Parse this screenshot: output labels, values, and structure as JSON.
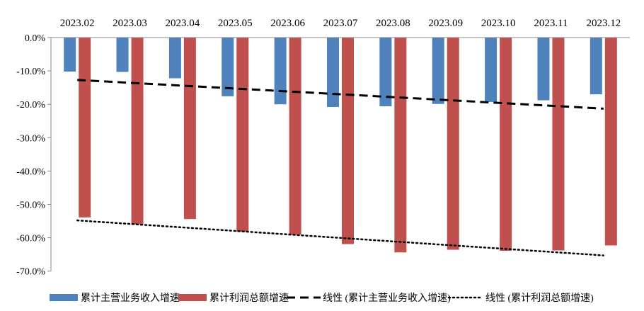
{
  "chart_data": {
    "type": "bar",
    "categories": [
      "2023.02",
      "2023.03",
      "2023.04",
      "2023.05",
      "2023.06",
      "2023.07",
      "2023.08",
      "2023.09",
      "2023.10",
      "2023.11",
      "2023.12"
    ],
    "series": [
      {
        "name": "累计主营业务收入增速",
        "color": "#4F81BD",
        "values": [
          -10.2,
          -10.3,
          -12.2,
          -17.6,
          -20.0,
          -20.8,
          -20.6,
          -19.9,
          -19.3,
          -18.8,
          -17.0
        ]
      },
      {
        "name": "累计利润总额增速",
        "color": "#C0504D",
        "values": [
          -53.9,
          -56.0,
          -54.4,
          -58.2,
          -59.1,
          -61.9,
          -64.4,
          -63.6,
          -63.9,
          -63.8,
          -62.3
        ]
      }
    ],
    "trendlines": [
      {
        "name": "线性 (累计主营业务收入增速)",
        "style": "dashed",
        "start": -12.7,
        "end": -21.3
      },
      {
        "name": "线性 (累计利润总额增速)",
        "style": "dotted",
        "start": -54.8,
        "end": -65.3
      }
    ],
    "yticks": [
      "0.0%",
      "-10.0%",
      "-20.0%",
      "-30.0%",
      "-40.0%",
      "-50.0%",
      "-60.0%",
      "-70.0%"
    ],
    "ylim": [
      -70,
      0
    ],
    "x_axis_position": "top",
    "legend_position": "bottom",
    "grid": false
  }
}
